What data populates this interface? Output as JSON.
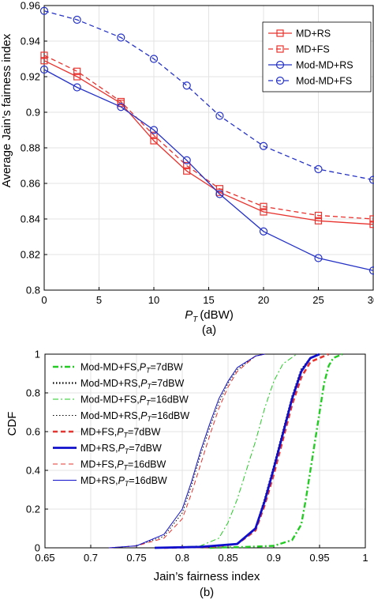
{
  "chart_data": [
    {
      "type": "line",
      "caption": "(a)",
      "xlabel": "P",
      "xlabel_sub": "T",
      "xlabel_unit": "(dBW)",
      "ylabel": "Average Jain’s fairness index",
      "xlim": [
        0,
        30
      ],
      "ylim": [
        0.8,
        0.96
      ],
      "xticks": [
        0,
        5,
        10,
        15,
        20,
        25,
        30
      ],
      "yticks": [
        0.8,
        0.82,
        0.84,
        0.86,
        0.88,
        0.9,
        0.92,
        0.94,
        0.96
      ],
      "xticklabels": [
        "0",
        "5",
        "10",
        "15",
        "20",
        "25",
        "30"
      ],
      "yticklabels": [
        "0.8",
        "0.82",
        "0.84",
        "0.86",
        "0.88",
        "0.9",
        "0.92",
        "0.94",
        "0.96"
      ],
      "grid": true,
      "legend_position": "top-right",
      "x": [
        0,
        3,
        7,
        10,
        13,
        16,
        20,
        25,
        30
      ],
      "series": [
        {
          "name": "MD+RS",
          "color": "#e8332e",
          "dash": "solid",
          "marker": "square",
          "values": [
            0.929,
            0.92,
            0.905,
            0.884,
            0.867,
            0.855,
            0.844,
            0.839,
            0.837
          ]
        },
        {
          "name": "MD+FS",
          "color": "#e8332e",
          "dash": "dashed",
          "marker": "square",
          "values": [
            0.932,
            0.923,
            0.906,
            0.887,
            0.87,
            0.857,
            0.847,
            0.842,
            0.84
          ]
        },
        {
          "name": "Mod-MD+RS",
          "color": "#2532c6",
          "dash": "solid",
          "marker": "circle",
          "values": [
            0.924,
            0.914,
            0.903,
            0.89,
            0.873,
            0.854,
            0.833,
            0.818,
            0.811
          ]
        },
        {
          "name": "Mod-MD+FS",
          "color": "#2532c6",
          "dash": "dashed",
          "marker": "circle",
          "values": [
            0.957,
            0.952,
            0.942,
            0.93,
            0.915,
            0.898,
            0.881,
            0.868,
            0.862
          ]
        }
      ]
    },
    {
      "type": "line",
      "caption": "(b)",
      "xlabel": "Jain’s fairness index",
      "ylabel": "CDF",
      "xlim": [
        0.65,
        1
      ],
      "ylim": [
        0,
        1
      ],
      "xticks": [
        0.65,
        0.7,
        0.75,
        0.8,
        0.85,
        0.9,
        0.95,
        1
      ],
      "yticks": [
        0,
        0.2,
        0.4,
        0.6,
        0.8,
        1
      ],
      "xticklabels": [
        "0.65",
        "0.7",
        "0.75",
        "0.8",
        "0.85",
        "0.9",
        "0.95",
        "1"
      ],
      "yticklabels": [
        "0",
        "0.2",
        "0.4",
        "0.6",
        "0.8",
        "1"
      ],
      "grid": true,
      "legend_position": "top-left",
      "series": [
        {
          "name": "Mod-MD+FS,",
          "pt": "P",
          "sub": "T",
          "suffix": "=7dBW",
          "color": "#22cc22",
          "dash": "dashdot",
          "width": 2.4,
          "points": [
            [
              0.83,
              0
            ],
            [
              0.87,
              0.005
            ],
            [
              0.9,
              0.01
            ],
            [
              0.92,
              0.04
            ],
            [
              0.93,
              0.12
            ],
            [
              0.935,
              0.25
            ],
            [
              0.94,
              0.4
            ],
            [
              0.945,
              0.55
            ],
            [
              0.95,
              0.7
            ],
            [
              0.955,
              0.85
            ],
            [
              0.96,
              0.94
            ],
            [
              0.965,
              0.98
            ],
            [
              0.975,
              1
            ]
          ]
        },
        {
          "name": "Mod-MD+RS,",
          "pt": "P",
          "sub": "T",
          "suffix": "=7dBW",
          "color": "#000000",
          "dash": "dotted",
          "width": 2.2,
          "points": [
            [
              0.77,
              0
            ],
            [
              0.82,
              0.005
            ],
            [
              0.86,
              0.02
            ],
            [
              0.88,
              0.1
            ],
            [
              0.89,
              0.25
            ],
            [
              0.9,
              0.42
            ],
            [
              0.91,
              0.6
            ],
            [
              0.92,
              0.78
            ],
            [
              0.93,
              0.92
            ],
            [
              0.94,
              0.98
            ],
            [
              0.95,
              1
            ]
          ]
        },
        {
          "name": "Mod-MD+FS,",
          "pt": "P",
          "sub": "T",
          "suffix": "=16dBW",
          "color": "#22cc22",
          "dash": "dashdot",
          "width": 1,
          "points": [
            [
              0.78,
              0
            ],
            [
              0.82,
              0.01
            ],
            [
              0.84,
              0.05
            ],
            [
              0.85,
              0.13
            ],
            [
              0.86,
              0.25
            ],
            [
              0.87,
              0.4
            ],
            [
              0.88,
              0.55
            ],
            [
              0.89,
              0.72
            ],
            [
              0.9,
              0.86
            ],
            [
              0.91,
              0.95
            ],
            [
              0.925,
              1
            ]
          ]
        },
        {
          "name": "Mod-MD+RS,",
          "pt": "P",
          "sub": "T",
          "suffix": "=16dBW",
          "color": "#000000",
          "dash": "dotted",
          "width": 1,
          "points": [
            [
              0.72,
              0
            ],
            [
              0.75,
              0.01
            ],
            [
              0.78,
              0.06
            ],
            [
              0.8,
              0.18
            ],
            [
              0.81,
              0.32
            ],
            [
              0.82,
              0.48
            ],
            [
              0.83,
              0.62
            ],
            [
              0.84,
              0.75
            ],
            [
              0.85,
              0.85
            ],
            [
              0.86,
              0.92
            ],
            [
              0.88,
              0.99
            ],
            [
              0.89,
              1
            ]
          ]
        },
        {
          "name": "MD+FS,",
          "pt": "P",
          "sub": "T",
          "suffix": "=7dBW",
          "color": "#e8332e",
          "dash": "dashed",
          "width": 2.6,
          "points": [
            [
              0.78,
              0
            ],
            [
              0.83,
              0.005
            ],
            [
              0.86,
              0.02
            ],
            [
              0.88,
              0.09
            ],
            [
              0.89,
              0.22
            ],
            [
              0.9,
              0.38
            ],
            [
              0.91,
              0.56
            ],
            [
              0.92,
              0.74
            ],
            [
              0.93,
              0.88
            ],
            [
              0.94,
              0.96
            ],
            [
              0.96,
              1
            ]
          ]
        },
        {
          "name": "MD+RS,",
          "pt": "P",
          "sub": "T",
          "suffix": "=7dBW",
          "color": "#1010cc",
          "dash": "solid",
          "width": 2.8,
          "points": [
            [
              0.77,
              0
            ],
            [
              0.82,
              0.005
            ],
            [
              0.86,
              0.02
            ],
            [
              0.88,
              0.1
            ],
            [
              0.89,
              0.24
            ],
            [
              0.9,
              0.41
            ],
            [
              0.91,
              0.59
            ],
            [
              0.92,
              0.77
            ],
            [
              0.93,
              0.91
            ],
            [
              0.94,
              0.98
            ],
            [
              0.95,
              1
            ]
          ]
        },
        {
          "name": "MD+FS,",
          "pt": "P",
          "sub": "T",
          "suffix": "=16dBW",
          "color": "#e8332e",
          "dash": "dashed",
          "width": 1,
          "points": [
            [
              0.72,
              0
            ],
            [
              0.75,
              0.01
            ],
            [
              0.78,
              0.05
            ],
            [
              0.8,
              0.15
            ],
            [
              0.81,
              0.28
            ],
            [
              0.82,
              0.43
            ],
            [
              0.83,
              0.58
            ],
            [
              0.84,
              0.72
            ],
            [
              0.85,
              0.83
            ],
            [
              0.86,
              0.91
            ],
            [
              0.88,
              0.99
            ],
            [
              0.89,
              1
            ]
          ]
        },
        {
          "name": "MD+RS,",
          "pt": "P",
          "sub": "T",
          "suffix": "=16dBW",
          "color": "#1010cc",
          "dash": "solid",
          "width": 1,
          "points": [
            [
              0.72,
              0
            ],
            [
              0.75,
              0.01
            ],
            [
              0.78,
              0.07
            ],
            [
              0.8,
              0.2
            ],
            [
              0.81,
              0.34
            ],
            [
              0.82,
              0.5
            ],
            [
              0.83,
              0.64
            ],
            [
              0.84,
              0.77
            ],
            [
              0.85,
              0.86
            ],
            [
              0.86,
              0.93
            ],
            [
              0.88,
              0.99
            ],
            [
              0.89,
              1
            ]
          ]
        }
      ]
    }
  ]
}
